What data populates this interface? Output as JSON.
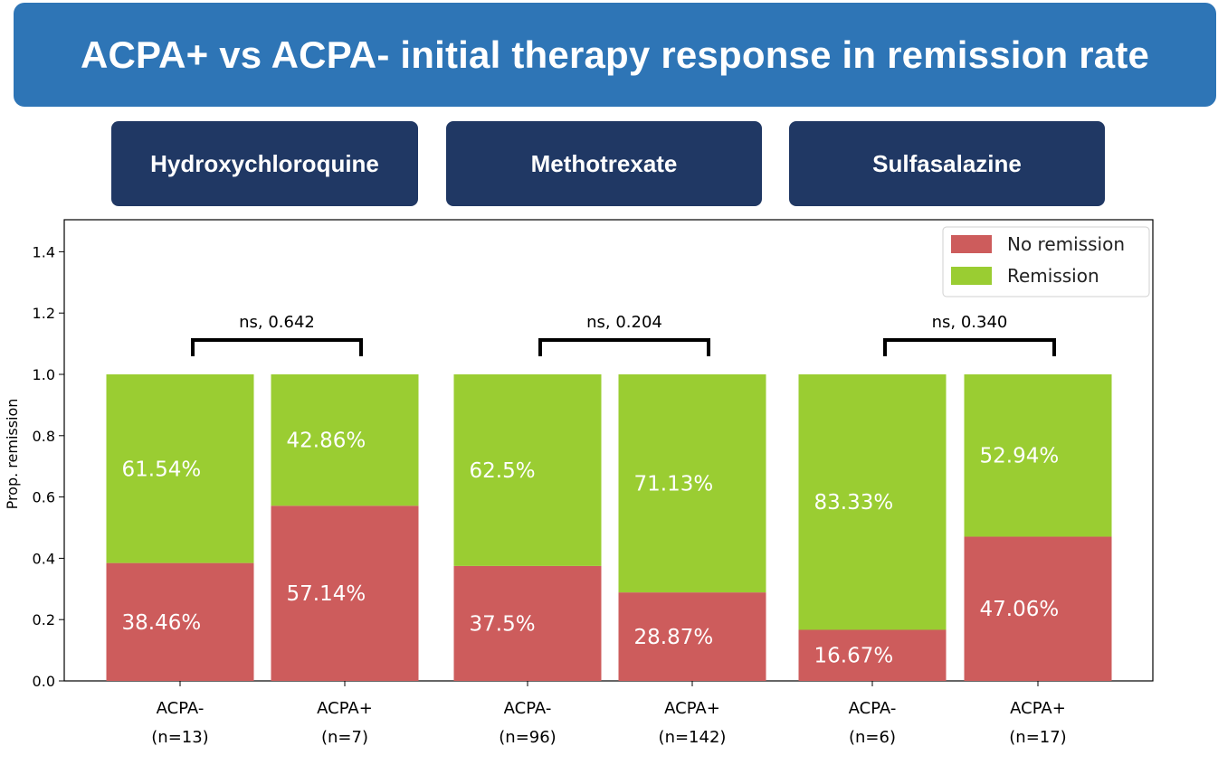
{
  "title": "ACPA+ vs ACPA- initial therapy response in remission rate",
  "groups": [
    {
      "label": "Hydroxychloroquine"
    },
    {
      "label": "Methotrexate"
    },
    {
      "label": "Sulfasalazine"
    }
  ],
  "chart_data": {
    "type": "bar",
    "stacked": true,
    "categories": [
      [
        "ACPA-",
        "(n=13)"
      ],
      [
        "ACPA+",
        "(n=7)"
      ],
      [
        "ACPA-",
        "(n=96)"
      ],
      [
        "ACPA+",
        "(n=142)"
      ],
      [
        "ACPA-",
        "(n=6)"
      ],
      [
        "ACPA+",
        "(n=17)"
      ]
    ],
    "series": [
      {
        "name": "No remission",
        "color": "#cd5c5c",
        "values": [
          0.3846,
          0.5714,
          0.375,
          0.2887,
          0.1667,
          0.4706
        ],
        "labels": [
          "38.46%",
          "57.14%",
          "37.5%",
          "28.87%",
          "16.67%",
          "47.06%"
        ]
      },
      {
        "name": "Remission",
        "color": "#9acd32",
        "values": [
          0.6154,
          0.4286,
          0.625,
          0.7113,
          0.8333,
          0.5294
        ],
        "labels": [
          "61.54%",
          "42.86%",
          "62.5%",
          "71.13%",
          "83.33%",
          "52.94%"
        ]
      }
    ],
    "ylabel": "Prop. remission",
    "ylim": [
      0,
      1.5
    ],
    "yticks": [
      0.0,
      0.2,
      0.4,
      0.6,
      0.8,
      1.0,
      1.2,
      1.4
    ],
    "legend_position": "top-right",
    "grid": false,
    "significance": [
      {
        "pair": [
          0,
          1
        ],
        "label": "ns, 0.642"
      },
      {
        "pair": [
          2,
          3
        ],
        "label": "ns, 0.204"
      },
      {
        "pair": [
          4,
          5
        ],
        "label": "ns, 0.340"
      }
    ]
  }
}
